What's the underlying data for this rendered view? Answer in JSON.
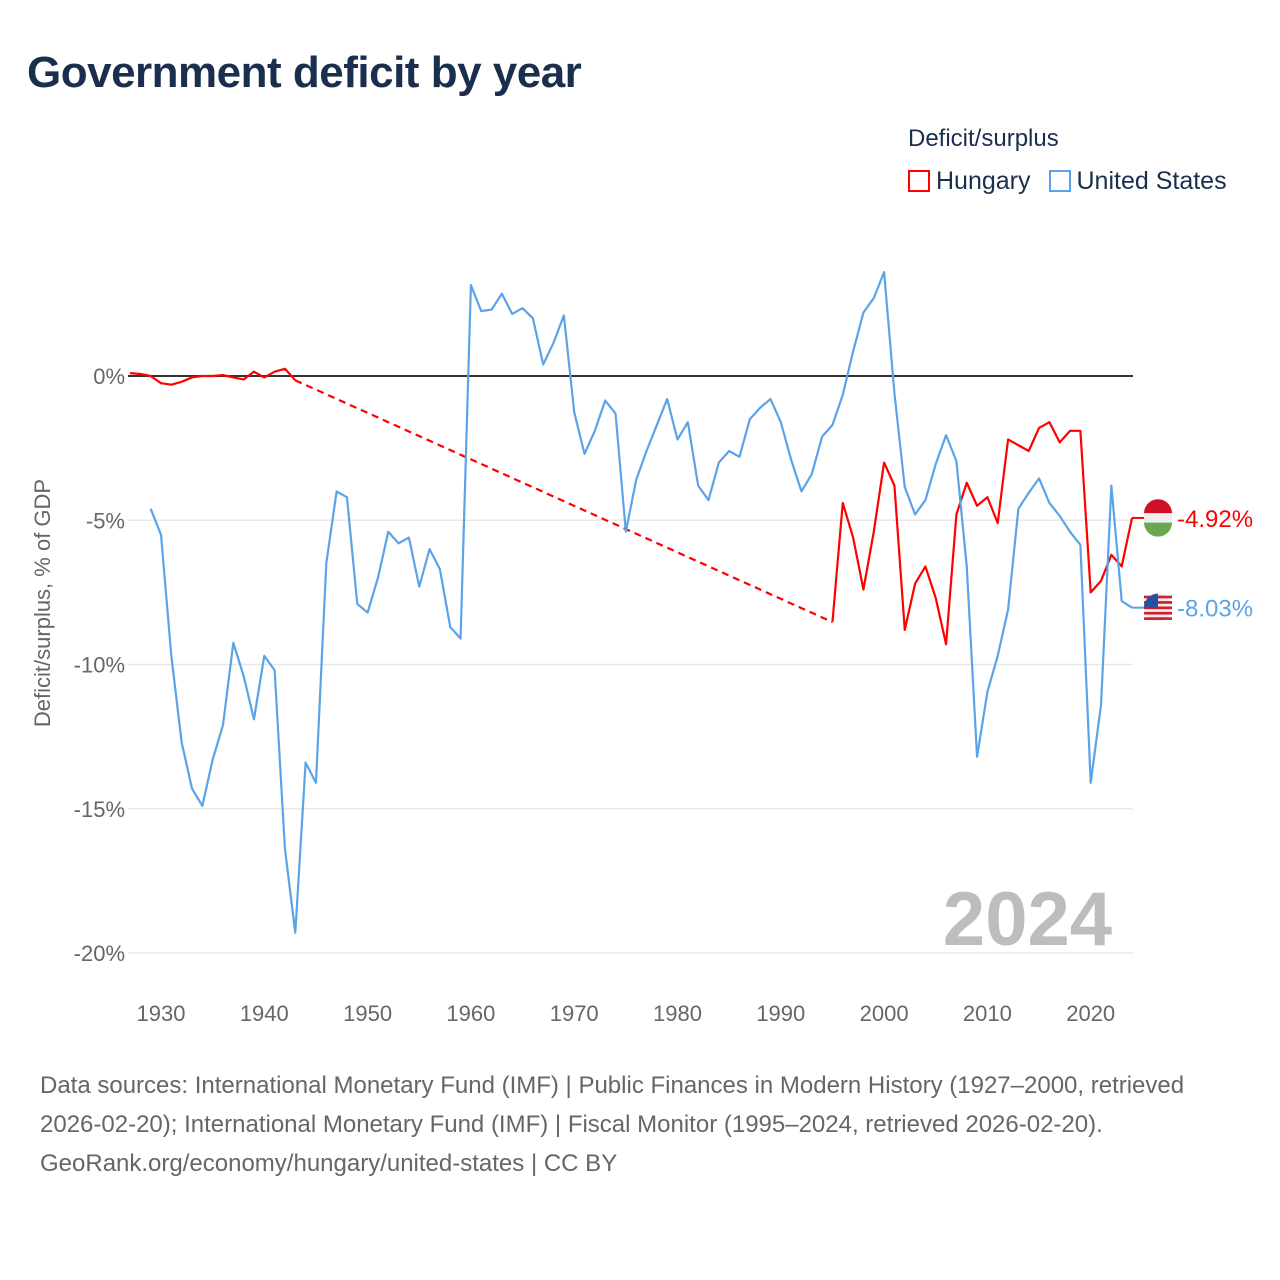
{
  "title": "Government deficit by year",
  "chart_data": {
    "type": "line",
    "title": "Government deficit by year",
    "ylabel": "Deficit/surplus, % of GDP",
    "xlabel": "",
    "ylim": [
      -20,
      4
    ],
    "xlim": [
      1927,
      2024
    ],
    "yticks": [
      0,
      -5,
      -10,
      -15,
      -20
    ],
    "ytick_labels": [
      "0%",
      "-5%",
      "-10%",
      "-15%",
      "-20%"
    ],
    "xticks": [
      1930,
      1940,
      1950,
      1960,
      1970,
      1980,
      1990,
      2000,
      2010,
      2020
    ],
    "xtick_labels": [
      "1930",
      "1940",
      "1950",
      "1960",
      "1970",
      "1980",
      "1990",
      "2000",
      "2010",
      "2020"
    ],
    "legend_title": "Deficit/surplus",
    "legend_position": "top-right",
    "watermark_year": "2024",
    "series": [
      {
        "name": "Hungary",
        "color": "#ff0000",
        "end_label": "-4.92%",
        "gap": [
          1943,
          1995
        ],
        "x": [
          1927,
          1928,
          1929,
          1930,
          1931,
          1932,
          1933,
          1934,
          1935,
          1936,
          1937,
          1938,
          1939,
          1940,
          1941,
          1942,
          1943,
          1995,
          1996,
          1997,
          1998,
          1999,
          2000,
          2001,
          2002,
          2003,
          2004,
          2005,
          2006,
          2007,
          2008,
          2009,
          2010,
          2011,
          2012,
          2013,
          2014,
          2015,
          2016,
          2017,
          2018,
          2019,
          2020,
          2021,
          2022,
          2023,
          2024
        ],
        "values": [
          0.1,
          0.07,
          0,
          -0.25,
          -0.3,
          -0.2,
          -0.05,
          0,
          0,
          0.03,
          -0.05,
          -0.12,
          0.15,
          -0.05,
          0.15,
          0.25,
          -0.15,
          -8.53,
          -4.4,
          -5.6,
          -7.4,
          -5.4,
          -3.0,
          -3.8,
          -8.8,
          -7.2,
          -6.6,
          -7.7,
          -9.3,
          -4.8,
          -3.7,
          -4.5,
          -4.2,
          -5.1,
          -2.2,
          -2.4,
          -2.6,
          -1.8,
          -1.6,
          -2.3,
          -1.9,
          -1.9,
          -7.5,
          -7.1,
          -6.2,
          -6.6,
          -4.92
        ]
      },
      {
        "name": "United States",
        "color": "#5ba3e8",
        "end_label": "-8.03%",
        "x": [
          1929,
          1930,
          1931,
          1932,
          1933,
          1934,
          1935,
          1936,
          1937,
          1938,
          1939,
          1940,
          1941,
          1942,
          1943,
          1944,
          1945,
          1946,
          1947,
          1948,
          1949,
          1950,
          1951,
          1952,
          1953,
          1954,
          1955,
          1956,
          1957,
          1958,
          1959,
          1960,
          1961,
          1962,
          1963,
          1964,
          1965,
          1966,
          1967,
          1968,
          1969,
          1970,
          1971,
          1972,
          1973,
          1974,
          1975,
          1976,
          1977,
          1978,
          1979,
          1980,
          1981,
          1982,
          1983,
          1984,
          1985,
          1986,
          1987,
          1988,
          1989,
          1990,
          1991,
          1992,
          1993,
          1994,
          1995,
          1996,
          1997,
          1998,
          1999,
          2000,
          2001,
          2002,
          2003,
          2004,
          2005,
          2006,
          2007,
          2008,
          2009,
          2010,
          2011,
          2012,
          2013,
          2014,
          2015,
          2016,
          2017,
          2018,
          2019,
          2020,
          2021,
          2022,
          2023,
          2024
        ],
        "values": [
          -4.6,
          -5.5,
          -9.7,
          -12.7,
          -14.3,
          -14.9,
          -13.3,
          -12.1,
          -9.25,
          -10.4,
          -11.9,
          -9.7,
          -10.2,
          -16.4,
          -19.3,
          -13.4,
          -14.1,
          -6.5,
          -4.0,
          -4.2,
          -7.9,
          -8.2,
          -7.0,
          -5.4,
          -5.8,
          -5.6,
          -7.3,
          -6.0,
          -6.7,
          -8.7,
          -9.1,
          3.15,
          2.25,
          2.3,
          2.85,
          2.15,
          2.35,
          2.0,
          0.4,
          1.15,
          2.1,
          -1.25,
          -2.7,
          -1.9,
          -0.85,
          -1.3,
          -5.4,
          -3.6,
          -2.6,
          -1.7,
          -0.8,
          -2.2,
          -1.6,
          -3.8,
          -4.3,
          -3.0,
          -2.6,
          -2.8,
          -1.5,
          -1.1,
          -0.8,
          -1.6,
          -2.9,
          -4.0,
          -3.4,
          -2.1,
          -1.7,
          -0.65,
          0.85,
          2.2,
          2.7,
          3.6,
          -0.6,
          -3.85,
          -4.8,
          -4.3,
          -3.05,
          -2.05,
          -2.95,
          -6.6,
          -13.2,
          -10.95,
          -9.7,
          -8.1,
          -4.6,
          -4.05,
          -3.55,
          -4.4,
          -4.85,
          -5.4,
          -5.85,
          -14.1,
          -11.4,
          -3.8,
          -7.8,
          -8.03
        ]
      }
    ]
  },
  "footer": {
    "sources": "Data sources: International Monetary Fund (IMF) | Public Finances in Modern History (1927–2000, retrieved 2026-02-20); International Monetary Fund (IMF) | Fiscal Monitor (1995–2024, retrieved 2026-02-20).",
    "credit": "GeoRank.org/economy/hungary/united-states | CC BY"
  }
}
